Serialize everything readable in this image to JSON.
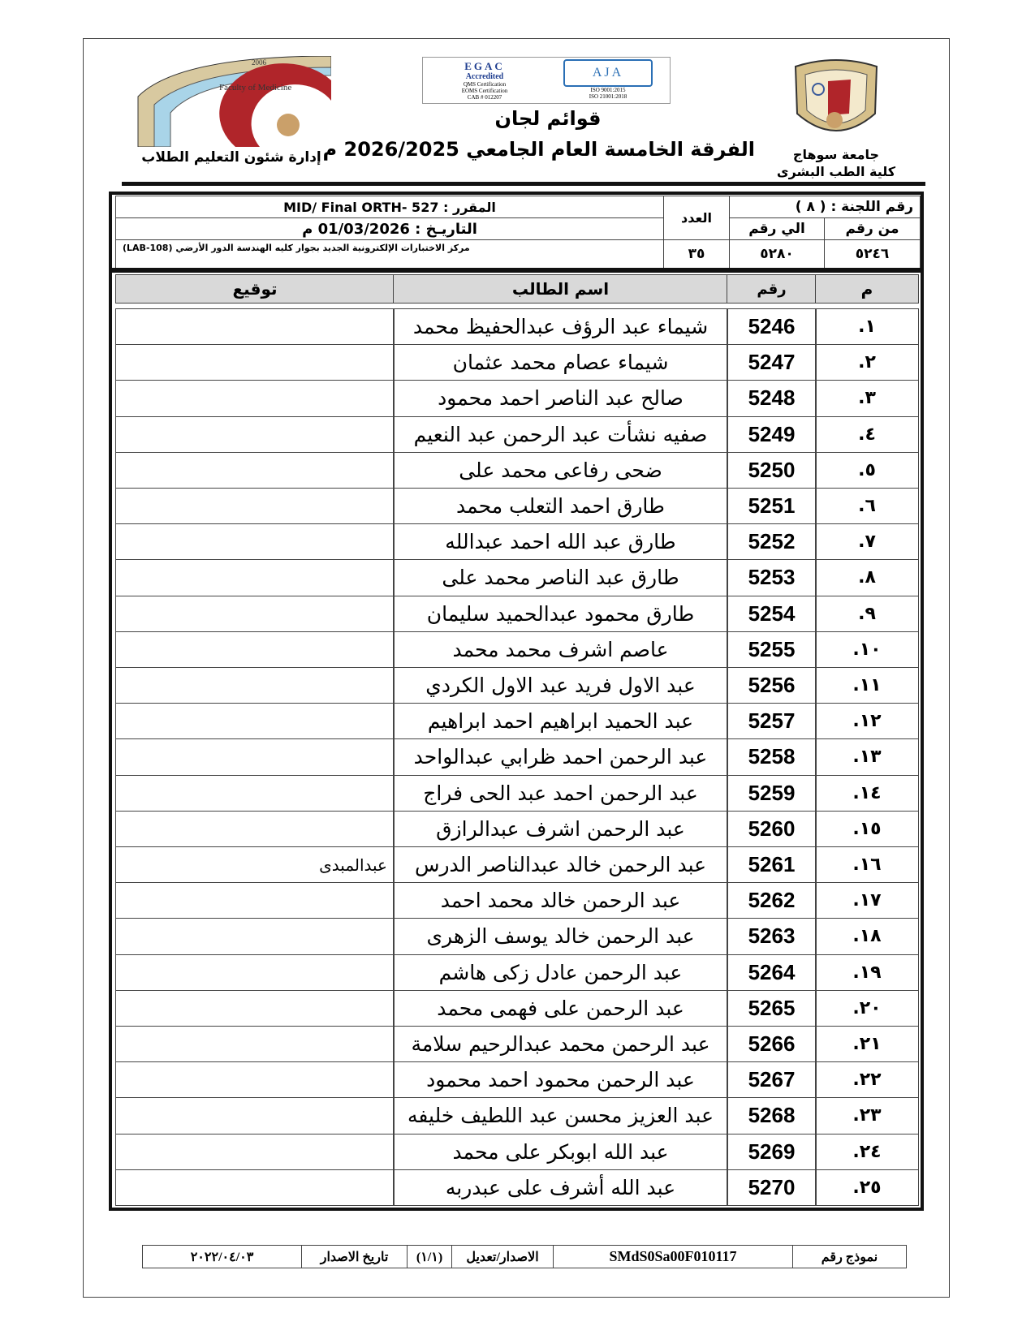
{
  "header": {
    "right_logo_lines": [
      "جامعة سوهاج",
      "كلية الطب البشرى"
    ],
    "left_logo_caption": "إدارة شئون التعليم الطلاب",
    "left_logo_year": "2006",
    "left_logo_text": "Faculty of Medicine",
    "accreditation": {
      "egac": [
        "EGAC",
        "Accredited",
        "QMS Certification",
        "EOMS Certification",
        "CAB # 012207"
      ],
      "aja": [
        "AJA",
        "ISO 9001:2015",
        "ISO 21001:2018"
      ]
    },
    "title": "قوائم لجان",
    "subtitle": "الفرقة الخامسة العام الجامعي 2026/2025 م"
  },
  "info": {
    "committee_label": "رقم اللجنة : ( ٨ )",
    "from_label": "من رقم",
    "to_label": "الي رقم",
    "from_value": "٥٢٤٦",
    "to_value": "٥٢٨٠",
    "count_label": "العدد",
    "count_value": "٣٥",
    "course": "المقرر :  MID/ Final ORTH- 527",
    "date": "التاريـخ : 01/03/2026 م",
    "location": "مركز الاختبارات الإلكترونية الجديد بجوار كليه الهندسة الدور الأرضي (LAB-108)"
  },
  "table": {
    "headers": {
      "index": "م",
      "number": "رقم",
      "name": "اسم الطالب",
      "signature": "توقيع"
    },
    "rows": [
      {
        "index": "١.",
        "number": "5246",
        "name": "شيماء عبد الرؤف عبدالحفيظ محمد"
      },
      {
        "index": "٢.",
        "number": "5247",
        "name": "شيماء عصام محمد عثمان"
      },
      {
        "index": "٣.",
        "number": "5248",
        "name": "صالح عبد الناصر احمد محمود"
      },
      {
        "index": "٤.",
        "number": "5249",
        "name": "صفيه نشأت عبد الرحمن عبد النعيم"
      },
      {
        "index": "٥.",
        "number": "5250",
        "name": "ضحى رفاعى محمد على"
      },
      {
        "index": "٦.",
        "number": "5251",
        "name": "طارق احمد التعلب محمد"
      },
      {
        "index": "٧.",
        "number": "5252",
        "name": "طارق عبد الله احمد عبدالله"
      },
      {
        "index": "٨.",
        "number": "5253",
        "name": "طارق عبد الناصر محمد على"
      },
      {
        "index": "٩.",
        "number": "5254",
        "name": "طارق محمود عبدالحميد سليمان"
      },
      {
        "index": "١٠.",
        "number": "5255",
        "name": "عاصم اشرف محمد محمد"
      },
      {
        "index": "١١.",
        "number": "5256",
        "name": "عبد الاول فريد عبد الاول الكردي"
      },
      {
        "index": "١٢.",
        "number": "5257",
        "name": "عبد الحميد ابراهيم احمد ابراهيم"
      },
      {
        "index": "١٣.",
        "number": "5258",
        "name": "عبد الرحمن احمد ظرابي عبدالواحد"
      },
      {
        "index": "١٤.",
        "number": "5259",
        "name": "عبد الرحمن احمد عبد الحى فراج"
      },
      {
        "index": "١٥.",
        "number": "5260",
        "name": "عبد الرحمن اشرف عبدالرازق"
      },
      {
        "index": "١٦.",
        "number": "5261",
        "name": "عبد الرحمن خالد عبدالناصر الدرس",
        "overlay": "عبدالمبدى"
      },
      {
        "index": "١٧.",
        "number": "5262",
        "name": "عبد الرحمن خالد محمد احمد"
      },
      {
        "index": "١٨.",
        "number": "5263",
        "name": "عبد الرحمن خالد يوسف الزهرى"
      },
      {
        "index": "١٩.",
        "number": "5264",
        "name": "عبد الرحمن عادل زكى هاشم"
      },
      {
        "index": "٢٠.",
        "number": "5265",
        "name": "عبد الرحمن على فهمى محمد"
      },
      {
        "index": "٢١.",
        "number": "5266",
        "name": "عبد الرحمن محمد عبدالرحيم سلامة"
      },
      {
        "index": "٢٢.",
        "number": "5267",
        "name": "عبد الرحمن محمود احمد محمود"
      },
      {
        "index": "٢٣.",
        "number": "5268",
        "name": "عبد العزيز محسن عبد اللطيف خليفه"
      },
      {
        "index": "٢٤.",
        "number": "5269",
        "name": "عبد الله ابوبكر على محمد"
      },
      {
        "index": "٢٥.",
        "number": "5270",
        "name": "عبد الله أشرف على عبدربه"
      }
    ]
  },
  "footer": {
    "form_label": "نموذج رقم",
    "form_code": "SMdS0Sa00F010117",
    "edition_label": "الاصدار/تعديل",
    "edition_value": "(١/١)",
    "issue_date_label": "تاريخ الاصدار",
    "issue_date_value": "٢٠٢٢/٠٤/٠٣"
  }
}
